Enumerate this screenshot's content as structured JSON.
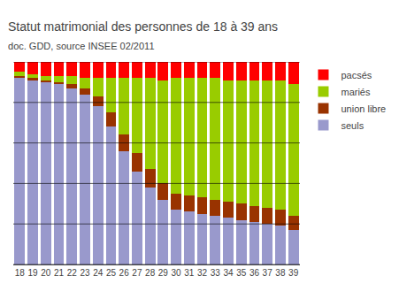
{
  "chart_data": {
    "type": "bar",
    "stacked": true,
    "title": "Statut matrimonial des personnes de 18 à 39 ans",
    "subtitle": "doc. GDD, source INSEE 02/2011",
    "categories": [
      "18",
      "19",
      "20",
      "21",
      "22",
      "23",
      "24",
      "25",
      "26",
      "27",
      "28",
      "29",
      "30",
      "31",
      "32",
      "33",
      "34",
      "35",
      "36",
      "37",
      "38",
      "39"
    ],
    "series": [
      {
        "name": "seuls",
        "color": "#9999cc",
        "values": [
          92,
          91,
          90,
          89,
          87,
          84,
          78,
          68,
          56,
          46,
          38,
          32,
          27,
          26,
          25,
          24,
          23,
          22,
          21,
          20,
          19,
          17
        ]
      },
      {
        "name": "union libre",
        "color": "#993300",
        "values": [
          1,
          1,
          1,
          1,
          2,
          3,
          5,
          7,
          8,
          9,
          9,
          8,
          8,
          8,
          8,
          8,
          8,
          8,
          8,
          8,
          8,
          7
        ]
      },
      {
        "name": "mariés",
        "color": "#99cc00",
        "values": [
          2,
          2,
          2,
          3,
          4,
          5,
          9,
          17,
          28,
          37,
          45,
          51,
          57,
          58,
          59,
          60,
          60,
          61,
          62,
          63,
          64,
          65
        ]
      },
      {
        "name": "pacsés",
        "color": "#ff0000",
        "values": [
          5,
          6,
          7,
          7,
          7,
          8,
          8,
          8,
          8,
          8,
          8,
          9,
          8,
          8,
          8,
          8,
          9,
          9,
          9,
          9,
          9,
          11
        ]
      }
    ],
    "ylim": [
      0,
      100
    ],
    "yticks": [
      0,
      20,
      40,
      60,
      80,
      100
    ],
    "grid": true,
    "tick_labels": "x",
    "legend": "right"
  }
}
